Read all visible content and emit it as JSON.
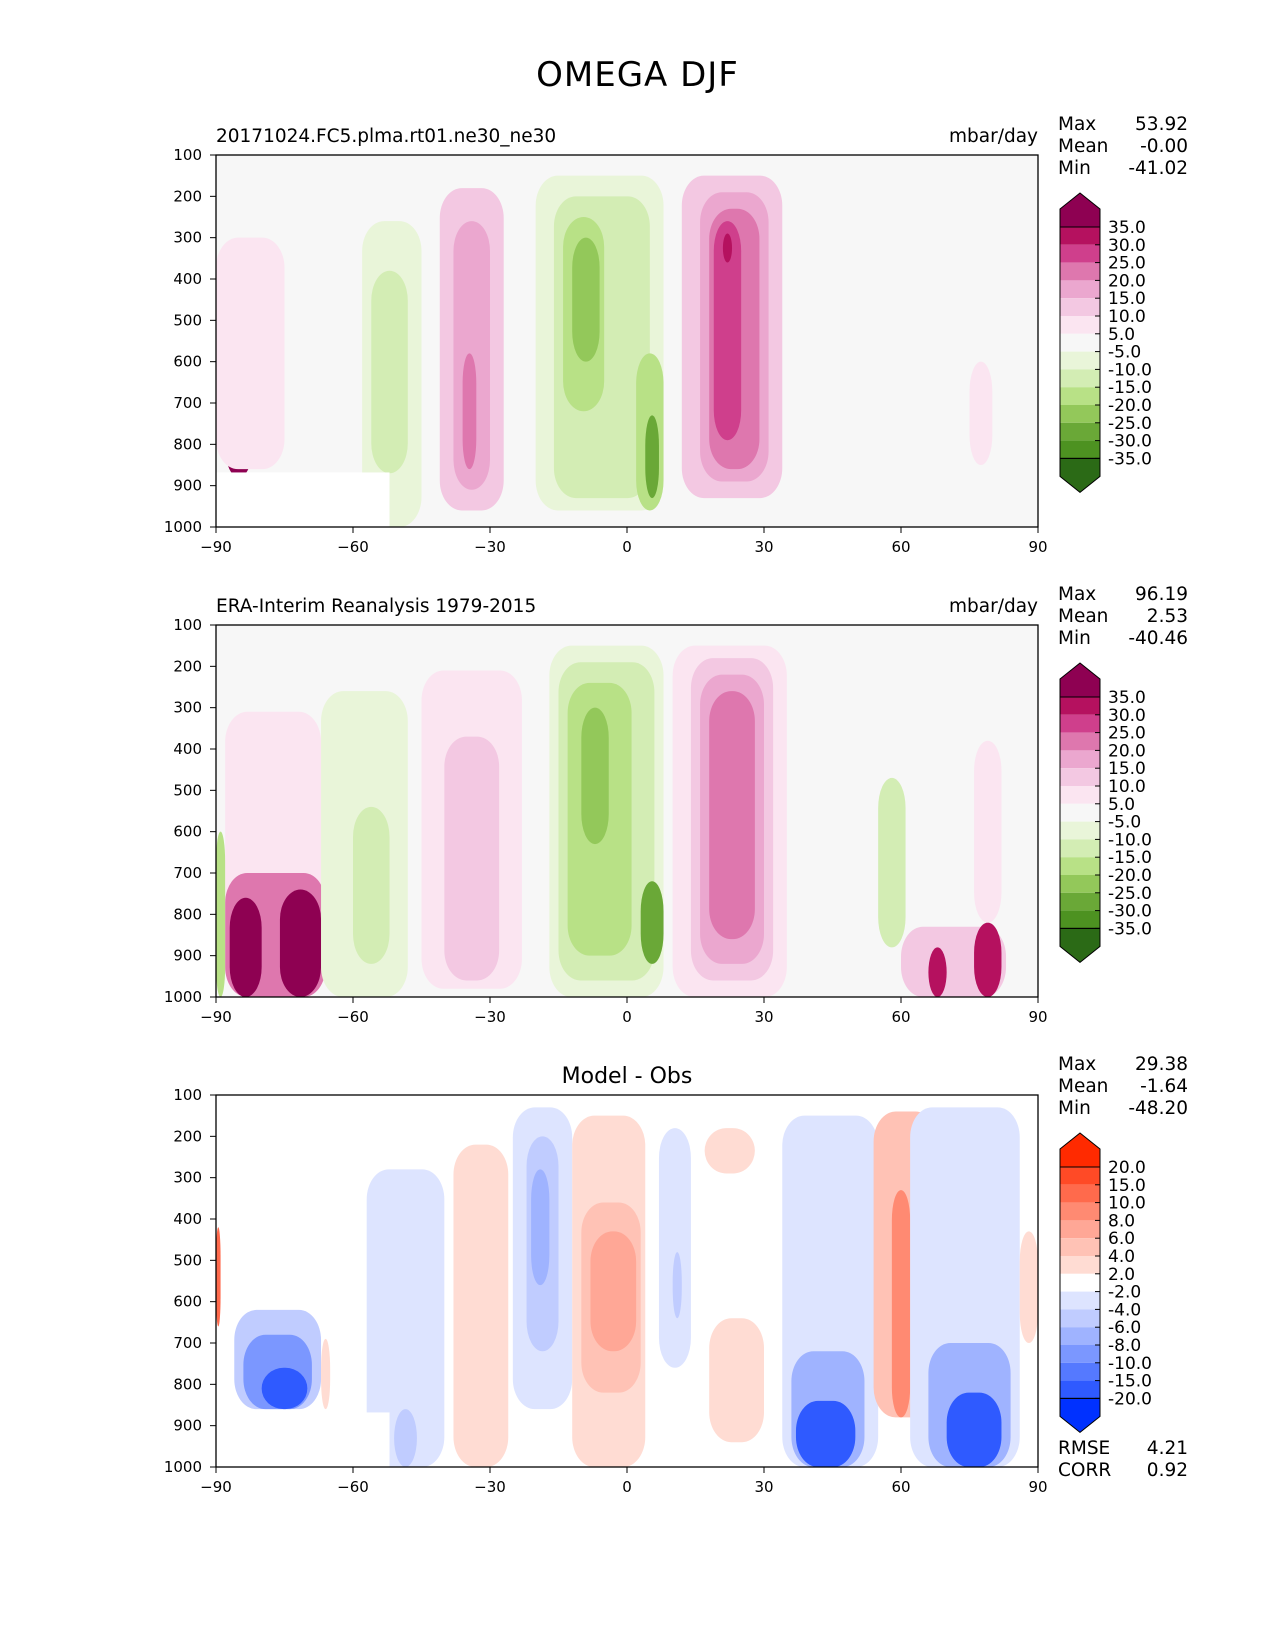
{
  "title": "OMEGA DJF",
  "colors": {
    "axis": "#000000",
    "plot_background": "#f7f7f7",
    "diff_background": "#ffffff"
  },
  "chart_data": [
    {
      "type": "heatmap",
      "plot_kind": "filled-contour",
      "title_left": "20171024.FC5.plma.rt01.ne30_ne30",
      "title_right": "mbar/day",
      "xlabel": "",
      "ylabel": "",
      "xlim": [
        -90,
        90
      ],
      "ylim": [
        1000,
        100
      ],
      "xticks": [
        "−90",
        "−60",
        "−30",
        "0",
        "30",
        "60",
        "90"
      ],
      "yticks": [
        "100",
        "200",
        "300",
        "400",
        "500",
        "600",
        "700",
        "800",
        "900",
        "1000"
      ],
      "stats": [
        {
          "label": "Max",
          "value": "53.92"
        },
        {
          "label": "Mean",
          "value": "-0.00"
        },
        {
          "label": "Min",
          "value": "-41.02"
        }
      ],
      "colorbar": {
        "labels": [
          "35.0",
          "30.0",
          "25.0",
          "20.0",
          "15.0",
          "10.0",
          "5.0",
          "-5.0",
          "-10.0",
          "-15.0",
          "-20.0",
          "-25.0",
          "-30.0",
          "-35.0"
        ],
        "colors": [
          "#8e0152",
          "#b5115f",
          "#cf3f8c",
          "#de77ae",
          "#eba7cf",
          "#f3c8e2",
          "#fbe5f1",
          "#f7f7f7",
          "#e9f5d9",
          "#d3edb4",
          "#b8e186",
          "#93c85a",
          "#6aa837",
          "#4d9221",
          "#2b6a16"
        ]
      },
      "features": [
        {
          "lat_range": [
            -88,
            -82
          ],
          "p_range": [
            720,
            880
          ],
          "value": 35
        },
        {
          "lat_range": [
            -90,
            -75
          ],
          "p_range": [
            300,
            860
          ],
          "value": 5
        },
        {
          "lat_range": [
            -58,
            -45
          ],
          "p_range": [
            260,
            1000
          ],
          "value": -10
        },
        {
          "lat_range": [
            -56,
            -48
          ],
          "p_range": [
            380,
            870
          ],
          "value": -15
        },
        {
          "lat_range": [
            -41,
            -27
          ],
          "p_range": [
            180,
            960
          ],
          "value": 10
        },
        {
          "lat_range": [
            -38,
            -30
          ],
          "p_range": [
            260,
            910
          ],
          "value": 15
        },
        {
          "lat_range": [
            -36,
            -33
          ],
          "p_range": [
            580,
            860
          ],
          "value": 20
        },
        {
          "lat_range": [
            -20,
            8
          ],
          "p_range": [
            150,
            960
          ],
          "value": -10
        },
        {
          "lat_range": [
            -16,
            5
          ],
          "p_range": [
            200,
            930
          ],
          "value": -15
        },
        {
          "lat_range": [
            -14,
            -5
          ],
          "p_range": [
            250,
            720
          ],
          "value": -20
        },
        {
          "lat_range": [
            -12,
            -6
          ],
          "p_range": [
            300,
            600
          ],
          "value": -25
        },
        {
          "lat_range": [
            2,
            8
          ],
          "p_range": [
            580,
            960
          ],
          "value": -20
        },
        {
          "lat_range": [
            4,
            7
          ],
          "p_range": [
            730,
            930
          ],
          "value": -30
        },
        {
          "lat_range": [
            12,
            34
          ],
          "p_range": [
            150,
            930
          ],
          "value": 10
        },
        {
          "lat_range": [
            16,
            31
          ],
          "p_range": [
            190,
            890
          ],
          "value": 15
        },
        {
          "lat_range": [
            18,
            29
          ],
          "p_range": [
            230,
            860
          ],
          "value": 20
        },
        {
          "lat_range": [
            19,
            25
          ],
          "p_range": [
            260,
            790
          ],
          "value": 25
        },
        {
          "lat_range": [
            21,
            23
          ],
          "p_range": [
            290,
            360
          ],
          "value": 30
        },
        {
          "lat_range": [
            46,
            62
          ],
          "p_range": [
            480,
            1000
          ],
          "value": -5
        },
        {
          "lat_range": [
            75,
            80
          ],
          "p_range": [
            600,
            850
          ],
          "value": 5
        }
      ]
    },
    {
      "type": "heatmap",
      "plot_kind": "filled-contour",
      "title_left": "ERA-Interim Reanalysis 1979-2015",
      "title_right": "mbar/day",
      "xlabel": "",
      "ylabel": "",
      "xlim": [
        -90,
        90
      ],
      "ylim": [
        1000,
        100
      ],
      "xticks": [
        "−90",
        "−60",
        "−30",
        "0",
        "30",
        "60",
        "90"
      ],
      "yticks": [
        "100",
        "200",
        "300",
        "400",
        "500",
        "600",
        "700",
        "800",
        "900",
        "1000"
      ],
      "stats": [
        {
          "label": "Max",
          "value": "96.19"
        },
        {
          "label": "Mean",
          "value": "2.53"
        },
        {
          "label": "Min",
          "value": "-40.46"
        }
      ],
      "colorbar": {
        "labels": [
          "35.0",
          "30.0",
          "25.0",
          "20.0",
          "15.0",
          "10.0",
          "5.0",
          "-5.0",
          "-10.0",
          "-15.0",
          "-20.0",
          "-25.0",
          "-30.0",
          "-35.0"
        ],
        "colors": [
          "#8e0152",
          "#b5115f",
          "#cf3f8c",
          "#de77ae",
          "#eba7cf",
          "#f3c8e2",
          "#fbe5f1",
          "#f7f7f7",
          "#e9f5d9",
          "#d3edb4",
          "#b8e186",
          "#93c85a",
          "#6aa837",
          "#4d9221",
          "#2b6a16"
        ]
      },
      "features": [
        {
          "lat_range": [
            -88,
            -67
          ],
          "p_range": [
            310,
            1000
          ],
          "value": 5
        },
        {
          "lat_range": [
            -88,
            -66
          ],
          "p_range": [
            700,
            1000
          ],
          "value": 20
        },
        {
          "lat_range": [
            -87,
            -80
          ],
          "p_range": [
            760,
            1000
          ],
          "value": 35
        },
        {
          "lat_range": [
            -76,
            -67
          ],
          "p_range": [
            740,
            1000
          ],
          "value": 35
        },
        {
          "lat_range": [
            -90,
            -88
          ],
          "p_range": [
            600,
            1000
          ],
          "value": -20
        },
        {
          "lat_range": [
            -67,
            -48
          ],
          "p_range": [
            260,
            1000
          ],
          "value": -10
        },
        {
          "lat_range": [
            -60,
            -52
          ],
          "p_range": [
            540,
            920
          ],
          "value": -15
        },
        {
          "lat_range": [
            -45,
            -23
          ],
          "p_range": [
            210,
            980
          ],
          "value": 5
        },
        {
          "lat_range": [
            -40,
            -28
          ],
          "p_range": [
            370,
            960
          ],
          "value": 10
        },
        {
          "lat_range": [
            -17,
            8
          ],
          "p_range": [
            150,
            1000
          ],
          "value": -10
        },
        {
          "lat_range": [
            -15,
            6
          ],
          "p_range": [
            190,
            960
          ],
          "value": -15
        },
        {
          "lat_range": [
            -13,
            1
          ],
          "p_range": [
            240,
            900
          ],
          "value": -20
        },
        {
          "lat_range": [
            -10,
            -4
          ],
          "p_range": [
            300,
            630
          ],
          "value": -25
        },
        {
          "lat_range": [
            3,
            8
          ],
          "p_range": [
            720,
            920
          ],
          "value": -30
        },
        {
          "lat_range": [
            10,
            35
          ],
          "p_range": [
            150,
            1000
          ],
          "value": 5
        },
        {
          "lat_range": [
            14,
            32
          ],
          "p_range": [
            180,
            960
          ],
          "value": 10
        },
        {
          "lat_range": [
            16,
            30
          ],
          "p_range": [
            220,
            920
          ],
          "value": 15
        },
        {
          "lat_range": [
            18,
            28
          ],
          "p_range": [
            260,
            860
          ],
          "value": 20
        },
        {
          "lat_range": [
            52,
            63
          ],
          "p_range": [
            260,
            1000
          ],
          "value": -5
        },
        {
          "lat_range": [
            55,
            61
          ],
          "p_range": [
            470,
            880
          ],
          "value": -15
        },
        {
          "lat_range": [
            60,
            83
          ],
          "p_range": [
            830,
            1000
          ],
          "value": 10
        },
        {
          "lat_range": [
            66,
            70
          ],
          "p_range": [
            880,
            1000
          ],
          "value": 30
        },
        {
          "lat_range": [
            76,
            82
          ],
          "p_range": [
            820,
            1000
          ],
          "value": 30
        },
        {
          "lat_range": [
            76,
            82
          ],
          "p_range": [
            380,
            820
          ],
          "value": 5
        }
      ]
    },
    {
      "type": "heatmap",
      "plot_kind": "filled-contour",
      "title_center": "Model - Obs",
      "xlabel": "",
      "ylabel": "",
      "xlim": [
        -90,
        90
      ],
      "ylim": [
        1000,
        100
      ],
      "xticks": [
        "−90",
        "−60",
        "−30",
        "0",
        "30",
        "60",
        "90"
      ],
      "yticks": [
        "100",
        "200",
        "300",
        "400",
        "500",
        "600",
        "700",
        "800",
        "900",
        "1000"
      ],
      "stats": [
        {
          "label": "Max",
          "value": "29.38"
        },
        {
          "label": "Mean",
          "value": "-1.64"
        },
        {
          "label": "Min",
          "value": "-48.20"
        }
      ],
      "metrics": [
        {
          "label": "RMSE",
          "value": "4.21"
        },
        {
          "label": "CORR",
          "value": "0.92"
        }
      ],
      "colorbar": {
        "labels": [
          "20.0",
          "15.0",
          "10.0",
          "8.0",
          "6.0",
          "4.0",
          "2.0",
          "-2.0",
          "-4.0",
          "-6.0",
          "-8.0",
          "-10.0",
          "-15.0",
          "-20.0"
        ],
        "colors": [
          "#ff2a00",
          "#ff4a26",
          "#ff6a4c",
          "#ff8a72",
          "#ffa796",
          "#ffc2b5",
          "#ffdcd3",
          "#ffffff",
          "#dde4ff",
          "#c0ccff",
          "#9fb3ff",
          "#7b97ff",
          "#5579ff",
          "#2f5aff",
          "#0031ff"
        ]
      },
      "features": [
        {
          "lat_range": [
            -90,
            -89
          ],
          "p_range": [
            420,
            660
          ],
          "value": 12
        },
        {
          "lat_range": [
            -86,
            -67
          ],
          "p_range": [
            620,
            860
          ],
          "value": -5
        },
        {
          "lat_range": [
            -84,
            -69
          ],
          "p_range": [
            680,
            860
          ],
          "value": -10
        },
        {
          "lat_range": [
            -80,
            -70
          ],
          "p_range": [
            760,
            860
          ],
          "value": -20
        },
        {
          "lat_range": [
            -67,
            -65
          ],
          "p_range": [
            690,
            860
          ],
          "value": 3
        },
        {
          "lat_range": [
            -57,
            -40
          ],
          "p_range": [
            280,
            1000
          ],
          "value": -3
        },
        {
          "lat_range": [
            -51,
            -46
          ],
          "p_range": [
            860,
            1000
          ],
          "value": -5
        },
        {
          "lat_range": [
            -38,
            -26
          ],
          "p_range": [
            220,
            1000
          ],
          "value": 3
        },
        {
          "lat_range": [
            -25,
            -12
          ],
          "p_range": [
            130,
            860
          ],
          "value": -3
        },
        {
          "lat_range": [
            -22,
            -15
          ],
          "p_range": [
            200,
            720
          ],
          "value": -5
        },
        {
          "lat_range": [
            -21,
            -17
          ],
          "p_range": [
            280,
            560
          ],
          "value": -7
        },
        {
          "lat_range": [
            -12,
            4
          ],
          "p_range": [
            150,
            1000
          ],
          "value": 3
        },
        {
          "lat_range": [
            -10,
            3
          ],
          "p_range": [
            360,
            820
          ],
          "value": 5
        },
        {
          "lat_range": [
            -8,
            2
          ],
          "p_range": [
            430,
            720
          ],
          "value": 7
        },
        {
          "lat_range": [
            7,
            14
          ],
          "p_range": [
            180,
            760
          ],
          "value": -3
        },
        {
          "lat_range": [
            10,
            12
          ],
          "p_range": [
            480,
            640
          ],
          "value": -5
        },
        {
          "lat_range": [
            17,
            28
          ],
          "p_range": [
            180,
            290
          ],
          "value": 3
        },
        {
          "lat_range": [
            18,
            30
          ],
          "p_range": [
            640,
            940
          ],
          "value": 3
        },
        {
          "lat_range": [
            34,
            55
          ],
          "p_range": [
            150,
            1000
          ],
          "value": -3
        },
        {
          "lat_range": [
            36,
            52
          ],
          "p_range": [
            720,
            1000
          ],
          "value": -7
        },
        {
          "lat_range": [
            37,
            50
          ],
          "p_range": [
            840,
            1000
          ],
          "value": -20
        },
        {
          "lat_range": [
            54,
            68
          ],
          "p_range": [
            140,
            880
          ],
          "value": 4
        },
        {
          "lat_range": [
            58,
            62
          ],
          "p_range": [
            330,
            880
          ],
          "value": 8
        },
        {
          "lat_range": [
            62,
            86
          ],
          "p_range": [
            130,
            1000
          ],
          "value": -3
        },
        {
          "lat_range": [
            66,
            84
          ],
          "p_range": [
            700,
            1000
          ],
          "value": -7
        },
        {
          "lat_range": [
            70,
            82
          ],
          "p_range": [
            820,
            1000
          ],
          "value": -20
        },
        {
          "lat_range": [
            86,
            90
          ],
          "p_range": [
            430,
            700
          ],
          "value": 3
        }
      ]
    }
  ]
}
